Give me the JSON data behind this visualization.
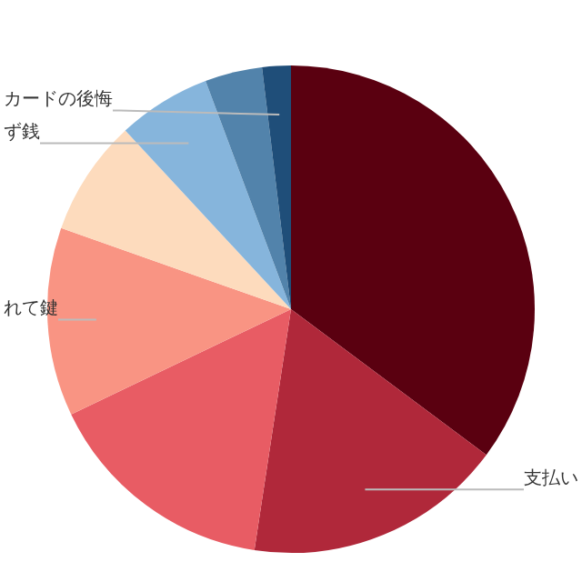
{
  "chart_data": {
    "type": "pie",
    "categories": [
      null,
      "支払い",
      null,
      "れて鍵",
      null,
      "ず銭",
      null,
      "カードの後悔"
    ],
    "values": [
      35.2,
      17.2,
      15.5,
      12.5,
      7.7,
      6.2,
      3.8,
      1.9
    ],
    "colors": [
      "#5a0010",
      "#b0283a",
      "#e85c64",
      "#f99483",
      "#fddbbd",
      "#86b5dc",
      "#5283ab",
      "#1f4e79"
    ],
    "legend": false
  }
}
